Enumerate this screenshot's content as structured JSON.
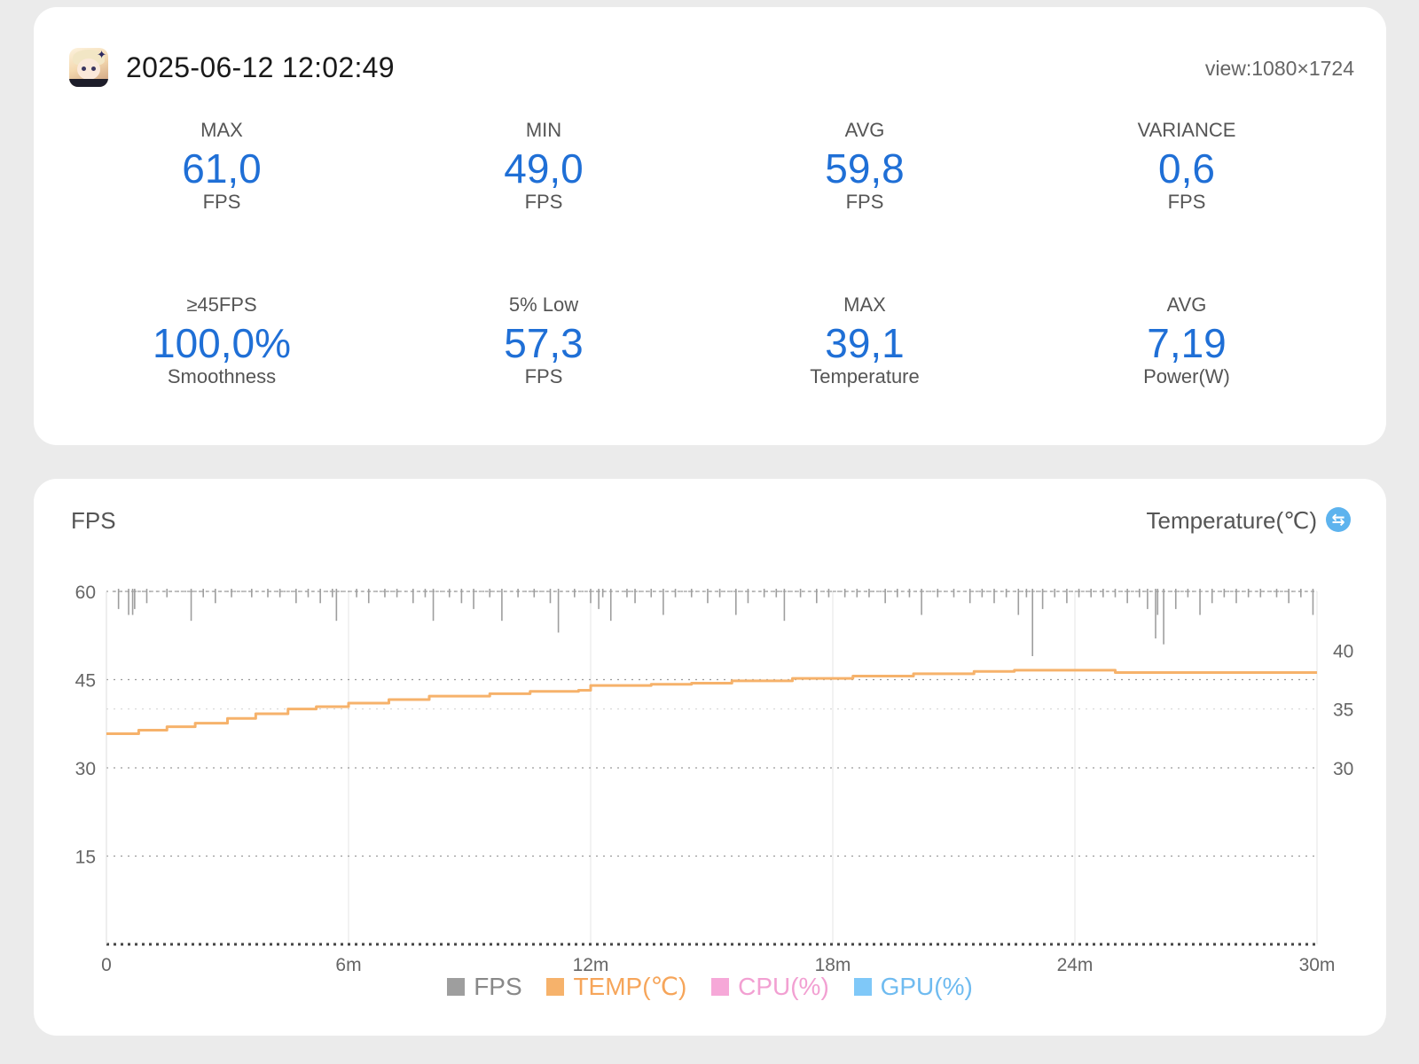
{
  "header": {
    "timestamp": "2025-06-12 12:02:49",
    "view_label": "view:1080×1724",
    "app_icon": "game-character-icon"
  },
  "stats": [
    {
      "label": "MAX",
      "value": "61,0",
      "unit": "FPS"
    },
    {
      "label": "MIN",
      "value": "49,0",
      "unit": "FPS"
    },
    {
      "label": "AVG",
      "value": "59,8",
      "unit": "FPS"
    },
    {
      "label": "VARIANCE",
      "value": "0,6",
      "unit": "FPS"
    },
    {
      "label": "≥45FPS",
      "value": "100,0%",
      "unit": "Smoothness"
    },
    {
      "label": "5% Low",
      "value": "57,3",
      "unit": "FPS"
    },
    {
      "label": "MAX",
      "value": "39,1",
      "unit": "Temperature"
    },
    {
      "label": "AVG",
      "value": "7,19",
      "unit": "Power(W)"
    }
  ],
  "chart": {
    "left_title": "FPS",
    "right_title": "Temperature(℃)",
    "swap_icon": "swap-axis-icon"
  },
  "colors": {
    "accent_value": "#1f6fd6",
    "fps": "#9e9e9e",
    "temp": "#f6b26b",
    "cpu": "#f6a8d8",
    "gpu": "#7fc8f8"
  },
  "chart_data": {
    "type": "line",
    "x_unit": "minutes",
    "x_ticks": [
      0,
      6,
      12,
      18,
      24,
      30
    ],
    "x_tick_labels": [
      "0",
      "6m",
      "12m",
      "18m",
      "24m",
      "30m"
    ],
    "xlim": [
      0,
      30
    ],
    "y_left": {
      "label": "FPS",
      "ylim": [
        0,
        60
      ],
      "ticks": [
        15,
        30,
        45,
        60
      ],
      "tick_labels": [
        "15",
        "30",
        "45",
        "60"
      ]
    },
    "y_right": {
      "label": "Temperature(℃)",
      "ylim": [
        15,
        45
      ],
      "ticks": [
        30,
        35,
        40
      ],
      "tick_labels": [
        "30",
        "35",
        "40"
      ]
    },
    "grid": true,
    "legend_placement": "bottom",
    "legend": [
      "FPS",
      "TEMP(℃)",
      "CPU(%)",
      "GPU(%)"
    ],
    "series": [
      {
        "name": "FPS",
        "baseline": 60,
        "dips": [
          [
            0.3,
            57
          ],
          [
            0.55,
            56
          ],
          [
            0.65,
            56
          ],
          [
            0.7,
            57
          ],
          [
            1.0,
            58
          ],
          [
            1.5,
            59
          ],
          [
            2.1,
            55
          ],
          [
            2.4,
            59
          ],
          [
            2.7,
            58
          ],
          [
            3.1,
            59
          ],
          [
            3.6,
            59
          ],
          [
            4.0,
            59
          ],
          [
            4.3,
            59
          ],
          [
            4.7,
            58
          ],
          [
            5.0,
            59
          ],
          [
            5.3,
            58
          ],
          [
            5.6,
            59
          ],
          [
            5.7,
            55
          ],
          [
            6.2,
            59
          ],
          [
            6.5,
            58
          ],
          [
            6.9,
            59
          ],
          [
            7.2,
            59
          ],
          [
            7.6,
            58
          ],
          [
            7.9,
            59
          ],
          [
            8.1,
            55
          ],
          [
            8.5,
            59
          ],
          [
            8.8,
            58
          ],
          [
            9.1,
            57
          ],
          [
            9.5,
            59
          ],
          [
            9.8,
            55
          ],
          [
            10.2,
            59
          ],
          [
            10.6,
            59
          ],
          [
            11.0,
            58
          ],
          [
            11.2,
            53
          ],
          [
            11.6,
            59
          ],
          [
            12.0,
            58
          ],
          [
            12.2,
            57
          ],
          [
            12.3,
            59
          ],
          [
            12.5,
            55
          ],
          [
            12.9,
            59
          ],
          [
            13.1,
            58
          ],
          [
            13.5,
            59
          ],
          [
            13.8,
            56
          ],
          [
            14.1,
            59
          ],
          [
            14.5,
            59
          ],
          [
            14.9,
            58
          ],
          [
            15.2,
            59
          ],
          [
            15.6,
            56
          ],
          [
            15.9,
            58
          ],
          [
            16.3,
            59
          ],
          [
            16.6,
            59
          ],
          [
            16.8,
            55
          ],
          [
            17.2,
            59
          ],
          [
            17.6,
            58
          ],
          [
            17.9,
            59
          ],
          [
            18.3,
            59
          ],
          [
            18.6,
            59
          ],
          [
            18.9,
            59
          ],
          [
            19.3,
            58
          ],
          [
            19.6,
            59
          ],
          [
            19.9,
            59
          ],
          [
            20.2,
            56
          ],
          [
            20.6,
            59
          ],
          [
            21.0,
            59
          ],
          [
            21.4,
            58
          ],
          [
            21.7,
            59
          ],
          [
            22.0,
            58
          ],
          [
            22.3,
            59
          ],
          [
            22.6,
            56
          ],
          [
            22.8,
            59
          ],
          [
            22.95,
            49
          ],
          [
            23.2,
            57
          ],
          [
            23.5,
            59
          ],
          [
            23.8,
            58
          ],
          [
            24.1,
            59
          ],
          [
            24.4,
            59
          ],
          [
            24.7,
            59
          ],
          [
            25.0,
            59
          ],
          [
            25.3,
            58
          ],
          [
            25.6,
            59
          ],
          [
            25.8,
            57
          ],
          [
            26.0,
            52
          ],
          [
            26.05,
            56
          ],
          [
            26.2,
            51
          ],
          [
            26.5,
            57
          ],
          [
            26.8,
            59
          ],
          [
            27.1,
            56
          ],
          [
            27.4,
            58
          ],
          [
            27.7,
            59
          ],
          [
            28.0,
            58
          ],
          [
            28.3,
            59
          ],
          [
            28.6,
            59
          ],
          [
            29.0,
            59
          ],
          [
            29.3,
            58
          ],
          [
            29.6,
            59
          ],
          [
            29.9,
            56
          ]
        ]
      },
      {
        "name": "TEMP(℃)",
        "x": [
          0,
          0.8,
          1.5,
          2.2,
          3.0,
          3.7,
          4.5,
          5.2,
          6.0,
          7.0,
          8.0,
          9.5,
          10.5,
          11.7,
          12.0,
          13.5,
          14.5,
          15.5,
          17.0,
          18.5,
          20.0,
          21.5,
          22.5,
          24.0,
          25.0,
          27.0,
          30.0
        ],
        "y": [
          32.9,
          33.2,
          33.5,
          33.8,
          34.2,
          34.6,
          35.0,
          35.2,
          35.5,
          35.8,
          36.1,
          36.3,
          36.5,
          36.6,
          37.0,
          37.1,
          37.2,
          37.4,
          37.6,
          37.8,
          38.0,
          38.2,
          38.3,
          38.3,
          38.1,
          38.1,
          38.1
        ]
      },
      {
        "name": "CPU(%)",
        "x": [],
        "y": []
      },
      {
        "name": "GPU(%)",
        "x": [],
        "y": []
      }
    ]
  }
}
